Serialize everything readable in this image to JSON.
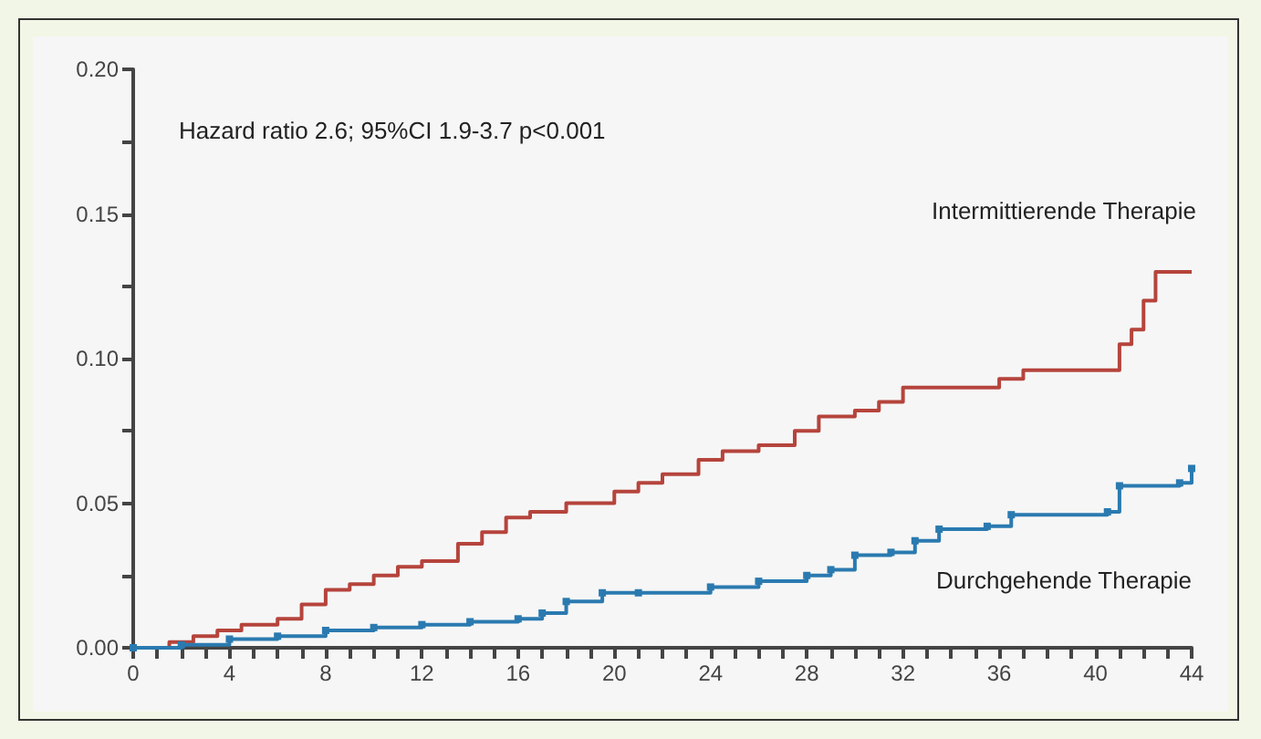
{
  "chart_data": {
    "type": "step",
    "annotations": [
      "Hazard ratio 2.6; 95%CI 1.9-3.7 p<0.001"
    ],
    "xlim": [
      0,
      44
    ],
    "xticks": [
      0,
      {
        "value": 1,
        "label": null
      },
      {
        "value": 2,
        "label": null
      },
      {
        "value": 3,
        "label": null
      },
      4,
      {
        "value": 5,
        "label": null
      },
      {
        "value": 6,
        "label": null
      },
      {
        "value": 7,
        "label": null
      },
      8,
      {
        "value": 9,
        "label": null
      },
      {
        "value": 10,
        "label": null
      },
      {
        "value": 11,
        "label": null
      },
      12,
      {
        "value": 13,
        "label": null
      },
      {
        "value": 14,
        "label": null
      },
      {
        "value": 15,
        "label": null
      },
      16,
      {
        "value": 17,
        "label": null
      },
      {
        "value": 18,
        "label": null
      },
      {
        "value": 19,
        "label": null
      },
      20,
      {
        "value": 21,
        "label": null
      },
      {
        "value": 22,
        "label": null
      },
      {
        "value": 23,
        "label": null
      },
      24,
      {
        "value": 25,
        "label": null
      },
      {
        "value": 26,
        "label": null
      },
      {
        "value": 27,
        "label": null
      },
      28,
      {
        "value": 29,
        "label": null
      },
      {
        "value": 30,
        "label": null
      },
      {
        "value": 31,
        "label": null
      },
      32,
      {
        "value": 33,
        "label": null
      },
      {
        "value": 34,
        "label": null
      },
      {
        "value": 35,
        "label": null
      },
      36,
      {
        "value": 37,
        "label": null
      },
      {
        "value": 38,
        "label": null
      },
      {
        "value": 39,
        "label": null
      },
      40,
      {
        "value": 41,
        "label": null
      },
      {
        "value": 42,
        "label": null
      },
      {
        "value": 43,
        "label": null
      },
      44
    ],
    "ylim": [
      0,
      0.2
    ],
    "yticks": [
      {
        "value": 0,
        "label": "0.00"
      },
      {
        "value": 0.025,
        "label": null
      },
      0.05,
      {
        "value": 0.075,
        "label": null
      },
      {
        "value": 0.1,
        "label": "0.10"
      },
      {
        "value": 0.125,
        "label": null
      },
      0.15,
      {
        "value": 0.175,
        "label": null
      },
      {
        "value": 0.2,
        "label": "0.20"
      }
    ],
    "grid": false,
    "legend": false,
    "line_style": "solid",
    "series": [
      {
        "name": "Intermittierende Therapie",
        "color": "#b5443c",
        "marker": "none",
        "x": [
          0,
          1.5,
          2.5,
          3.5,
          4.5,
          6,
          7,
          8,
          9,
          10,
          11,
          12,
          13.5,
          14.5,
          15.5,
          16.5,
          18,
          20,
          21,
          22,
          23.5,
          24.5,
          26,
          27.5,
          28.5,
          30,
          31,
          32,
          35,
          36,
          37,
          40.5,
          41,
          41.5,
          42,
          42.5,
          44
        ],
        "values": [
          0,
          0.002,
          0.004,
          0.006,
          0.008,
          0.01,
          0.015,
          0.02,
          0.022,
          0.025,
          0.028,
          0.03,
          0.036,
          0.04,
          0.045,
          0.047,
          0.05,
          0.054,
          0.057,
          0.06,
          0.065,
          0.068,
          0.07,
          0.075,
          0.08,
          0.082,
          0.085,
          0.09,
          0.09,
          0.093,
          0.096,
          0.096,
          0.105,
          0.11,
          0.12,
          0.13,
          0.13
        ]
      },
      {
        "name": "Durchgehende Therapie",
        "color": "#2a7ab0",
        "marker": "square",
        "x": [
          0,
          2,
          4,
          6,
          8,
          10,
          12,
          14,
          16,
          17,
          18,
          19.5,
          21,
          24,
          26,
          28,
          29,
          30,
          31.5,
          32.5,
          33.5,
          35.5,
          36.5,
          40.5,
          41,
          43.5,
          44
        ],
        "values": [
          0,
          0.001,
          0.003,
          0.004,
          0.006,
          0.007,
          0.008,
          0.009,
          0.01,
          0.012,
          0.016,
          0.019,
          0.019,
          0.021,
          0.023,
          0.025,
          0.027,
          0.032,
          0.033,
          0.037,
          0.041,
          0.042,
          0.046,
          0.047,
          0.056,
          0.057,
          0.062
        ]
      }
    ]
  }
}
